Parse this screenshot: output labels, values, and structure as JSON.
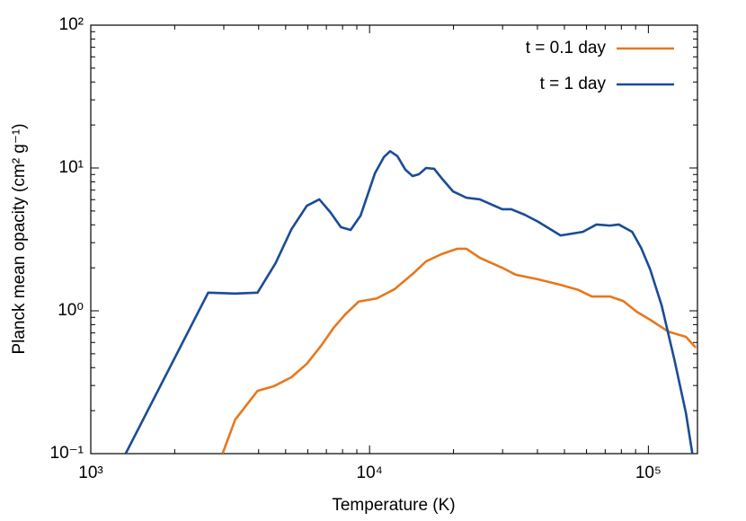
{
  "chart_data": {
    "type": "line",
    "xlabel": "Temperature (K)",
    "ylabel": "Planck mean opacity (cm² g⁻¹)",
    "xscale": "log",
    "yscale": "log",
    "xlim": [
      1000,
      150000
    ],
    "ylim": [
      0.1,
      100
    ],
    "xticks": [
      {
        "value": 1000,
        "label": "10³"
      },
      {
        "value": 10000,
        "label": "10⁴"
      },
      {
        "value": 100000,
        "label": "10⁵"
      }
    ],
    "yticks": [
      {
        "value": 0.1,
        "label": "10⁻¹"
      },
      {
        "value": 1,
        "label": "10⁰"
      },
      {
        "value": 10,
        "label": "10¹"
      },
      {
        "value": 100,
        "label": "10²"
      }
    ],
    "xticks_minor": [
      2000,
      3000,
      4000,
      5000,
      6000,
      7000,
      8000,
      9000,
      20000,
      30000,
      40000,
      50000,
      60000,
      70000,
      80000,
      90000
    ],
    "yticks_minor": [
      0.2,
      0.3,
      0.4,
      0.5,
      0.6,
      0.7,
      0.8,
      0.9,
      2,
      3,
      4,
      5,
      6,
      7,
      8,
      9,
      20,
      30,
      40,
      50,
      60,
      70,
      80,
      90
    ],
    "legend": "upper right",
    "series": [
      {
        "name": "t = 0.1 day",
        "color": "#e6781e",
        "x": [
          2970,
          3296,
          3963,
          4530,
          5248,
          5957,
          6699,
          7431,
          8183,
          9141,
          10610,
          12310,
          14270,
          15950,
          18090,
          20650,
          22250,
          24850,
          29920,
          33420,
          40260,
          48420,
          56130,
          62680,
          72770,
          81280,
          90780,
          101500,
          117700,
          136400,
          147900
        ],
        "values": [
          0.1,
          0.173,
          0.275,
          0.296,
          0.343,
          0.426,
          0.569,
          0.76,
          0.945,
          1.16,
          1.22,
          1.42,
          1.81,
          2.22,
          2.49,
          2.72,
          2.72,
          2.35,
          2.0,
          1.79,
          1.66,
          1.52,
          1.4,
          1.26,
          1.26,
          1.17,
          0.986,
          0.865,
          0.716,
          0.657,
          0.552
        ]
      },
      {
        "name": "t = 1 day",
        "color": "#1a4c96",
        "x": [
          1334,
          2637,
          3296,
          3963,
          4597,
          5248,
          5957,
          6603,
          7221,
          7890,
          8551,
          9283,
          10450,
          11250,
          11850,
          12580,
          13450,
          14270,
          15020,
          15950,
          17050,
          18090,
          19910,
          22250,
          24850,
          29920,
          32220,
          35980,
          40260,
          48420,
          58210,
          65130,
          72770,
          78340,
          87480,
          94240,
          101500,
          111600,
          123900,
          136400,
          143800
        ],
        "values": [
          0.1,
          1.34,
          1.32,
          1.34,
          2.15,
          3.73,
          5.44,
          6.03,
          4.92,
          3.85,
          3.68,
          4.64,
          9.16,
          11.9,
          13.1,
          12.1,
          9.71,
          8.77,
          9.03,
          10.0,
          9.86,
          8.53,
          6.86,
          6.19,
          6.03,
          5.14,
          5.14,
          4.71,
          4.2,
          3.37,
          3.57,
          4.02,
          3.95,
          4.02,
          3.57,
          2.75,
          1.95,
          1.09,
          0.457,
          0.192,
          0.1
        ]
      }
    ]
  }
}
